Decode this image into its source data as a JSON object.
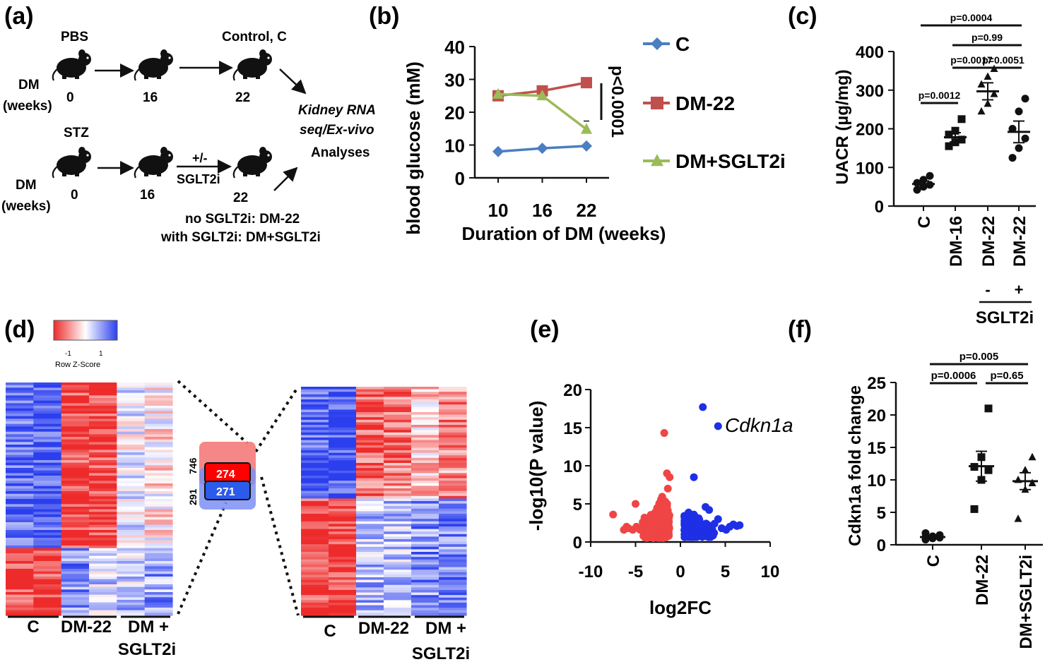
{
  "panels": {
    "a": "(a)",
    "b": "(b)",
    "c": "(c)",
    "d": "(d)",
    "e": "(e)",
    "f": "(f)"
  },
  "panel_a": {
    "pbs": "PBS",
    "stz": "STZ",
    "control": "Control, C",
    "dm": "DM",
    "weeks": "(weeks)",
    "t0": "0",
    "t16": "16",
    "t22": "22",
    "plusminus": "+/-",
    "sglt2i": "SGLT2i",
    "kidney1": "Kidney RNA",
    "kidney2": "seq/Ex-vivo",
    "analyses": "Analyses",
    "note1": "no SGLT2i: DM-22",
    "note2": "with SGLT2i: DM+SGLT2i"
  },
  "panel_d": {
    "legend_title": "Row Z-Score",
    "legend_min": "-1",
    "legend_max": "1",
    "overlap_top": "746",
    "overlap_bottom": "291",
    "box_top": "274",
    "box_bottom": "271",
    "left_cols": [
      "C",
      "DM-22",
      "DM +",
      "SGLT2i"
    ],
    "right_cols": [
      "C",
      "DM-22",
      "DM +",
      "SGLT2i"
    ],
    "colors": {
      "red": "#ee2b2b",
      "blue": "#2b3fee",
      "white": "#ffffff"
    }
  },
  "chart_data": [
    {
      "panel": "b",
      "type": "line",
      "xlabel": "Duration of DM (weeks)",
      "ylabel": "blood glucose (mM)",
      "x": [
        10,
        16,
        22
      ],
      "ylim": [
        0,
        40
      ],
      "yticks": [
        0,
        10,
        20,
        30,
        40
      ],
      "series": [
        {
          "name": "C",
          "values": [
            8,
            9,
            9.7
          ],
          "color": "#4a7fc1",
          "marker": "diamond"
        },
        {
          "name": "DM-22",
          "values": [
            25,
            26.5,
            29
          ],
          "color": "#c0504d",
          "marker": "square"
        },
        {
          "name": "DM+SGLT2i",
          "values": [
            25.5,
            25,
            14.8
          ],
          "color": "#9bbb59",
          "marker": "triangle"
        }
      ],
      "annotation": "p<0.0001"
    },
    {
      "panel": "c",
      "type": "scatter",
      "ylabel": "UACR (µg/mg)",
      "ylim": [
        0,
        400
      ],
      "yticks": [
        0,
        100,
        200,
        300,
        400
      ],
      "categories": [
        "C",
        "DM-16",
        "DM-22",
        "DM-22"
      ],
      "treatment": [
        "",
        "",
        "-",
        "+"
      ],
      "treatment_label": "SGLT2i",
      "means": [
        57,
        178,
        297,
        192
      ],
      "sem": [
        8,
        12,
        22,
        28
      ],
      "points": [
        [
          42,
          50,
          55,
          60,
          68,
          78
        ],
        [
          155,
          165,
          172,
          185,
          195,
          225
        ],
        [
          245,
          265,
          290,
          315,
          335,
          355
        ],
        [
          125,
          150,
          175,
          200,
          245,
          278
        ]
      ],
      "comparisons": [
        {
          "label": "p=0.0004",
          "from": 0,
          "to": 3
        },
        {
          "label": "p=0.99",
          "from": 1,
          "to": 3
        },
        {
          "label": "p=0.0017",
          "from": 1,
          "to": 2
        },
        {
          "label": "p=0.0051",
          "from": 2,
          "to": 3
        },
        {
          "label": "p=0.0012",
          "from": 0,
          "to": 1
        }
      ]
    },
    {
      "panel": "e",
      "type": "scatter",
      "xlabel": "log2FC",
      "ylabel": "-log10(P value)",
      "xlim": [
        -10,
        10
      ],
      "xticks": [
        -10,
        -5,
        0,
        5,
        10
      ],
      "ylim": [
        0,
        20
      ],
      "yticks": [
        0,
        5,
        10,
        15,
        20
      ],
      "highlight": {
        "label": "Cdkn1a",
        "x": 4.2,
        "y": 15.2
      },
      "series": [
        {
          "name": "down",
          "color": "#f04545",
          "points": [
            [
              -7.5,
              3.6
            ],
            [
              -6.3,
              1.6
            ],
            [
              -6.0,
              2.0
            ],
            [
              -5.8,
              1.8
            ],
            [
              -5.3,
              1.6
            ],
            [
              -4.9,
              2.0
            ],
            [
              -4.5,
              1.6
            ],
            [
              -4.2,
              2.6
            ],
            [
              -4.0,
              3.2
            ],
            [
              -3.8,
              2.2
            ],
            [
              -3.6,
              1.6
            ],
            [
              -5.0,
              5.0
            ],
            [
              -1.8,
              14.3
            ],
            [
              -1.5,
              9.0
            ],
            [
              -1.2,
              8.5
            ],
            [
              -1.4,
              7.0
            ]
          ]
        },
        {
          "name": "up",
          "color": "#1f2fe6",
          "points": [
            [
              2.5,
              17.7
            ],
            [
              4.2,
              15.2
            ],
            [
              1.5,
              8.5
            ],
            [
              3.8,
              2.4
            ],
            [
              4.2,
              3.0
            ],
            [
              4.6,
              1.8
            ],
            [
              5.1,
              1.6
            ],
            [
              5.5,
              2.0
            ],
            [
              5.9,
              2.3
            ],
            [
              6.3,
              2.1
            ],
            [
              6.6,
              2.2
            ],
            [
              3.2,
              4.2
            ],
            [
              2.8,
              4.6
            ]
          ]
        }
      ]
    },
    {
      "panel": "f",
      "type": "scatter",
      "ylabel": "Cdkn1a fold change",
      "ylim": [
        0,
        25
      ],
      "yticks": [
        0,
        5,
        10,
        15,
        20,
        25
      ],
      "categories": [
        "C",
        "DM-22",
        "DM+SGLT2i"
      ],
      "means": [
        1.2,
        12.1,
        9.8
      ],
      "sem": [
        0.2,
        2.3,
        1.3
      ],
      "points": [
        [
          0.8,
          1.0,
          1.1,
          1.2,
          1.3,
          1.5,
          1.8
        ],
        [
          5.5,
          10.0,
          11.5,
          12.0,
          13.5,
          21.0
        ],
        [
          4.0,
          8.5,
          9.5,
          10.0,
          11.5,
          13.5
        ]
      ],
      "markers": [
        "circle",
        "square",
        "triangle"
      ],
      "comparisons": [
        {
          "label": "p=0.005",
          "from": 0,
          "to": 2
        },
        {
          "label": "p=0.0006",
          "from": 0,
          "to": 1
        },
        {
          "label": "p=0.65",
          "from": 1,
          "to": 2
        }
      ]
    }
  ]
}
